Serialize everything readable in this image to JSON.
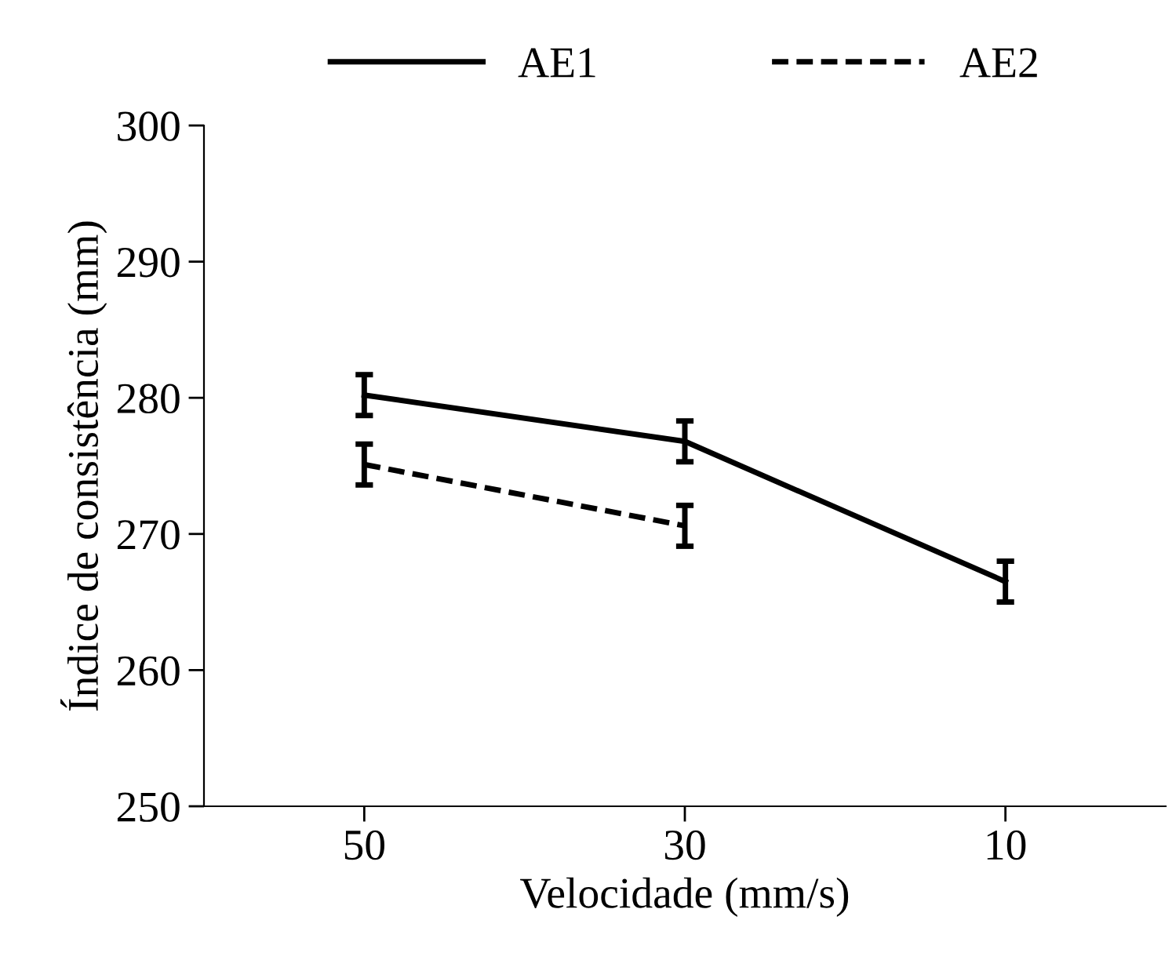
{
  "chart_data": {
    "type": "line",
    "xlabel": "Velocidade (mm/s)",
    "ylabel": "Índice de consistência (mm)",
    "categories": [
      "50",
      "30",
      "10"
    ],
    "series": [
      {
        "name": "AE1",
        "color": "#000000",
        "line_style": "solid",
        "values": [
          280.2,
          276.8,
          266.5
        ],
        "errors": [
          1.5,
          1.5,
          1.5
        ]
      },
      {
        "name": "AE2",
        "color": "#000000",
        "line_style": "dashed",
        "values": [
          275.1,
          270.6,
          null
        ],
        "errors": [
          1.5,
          1.5,
          null
        ]
      }
    ],
    "ylim": [
      250,
      300
    ],
    "yticks": [
      250,
      260,
      270,
      280,
      290,
      300
    ],
    "grid": false,
    "legend": "top",
    "marker": "none"
  }
}
